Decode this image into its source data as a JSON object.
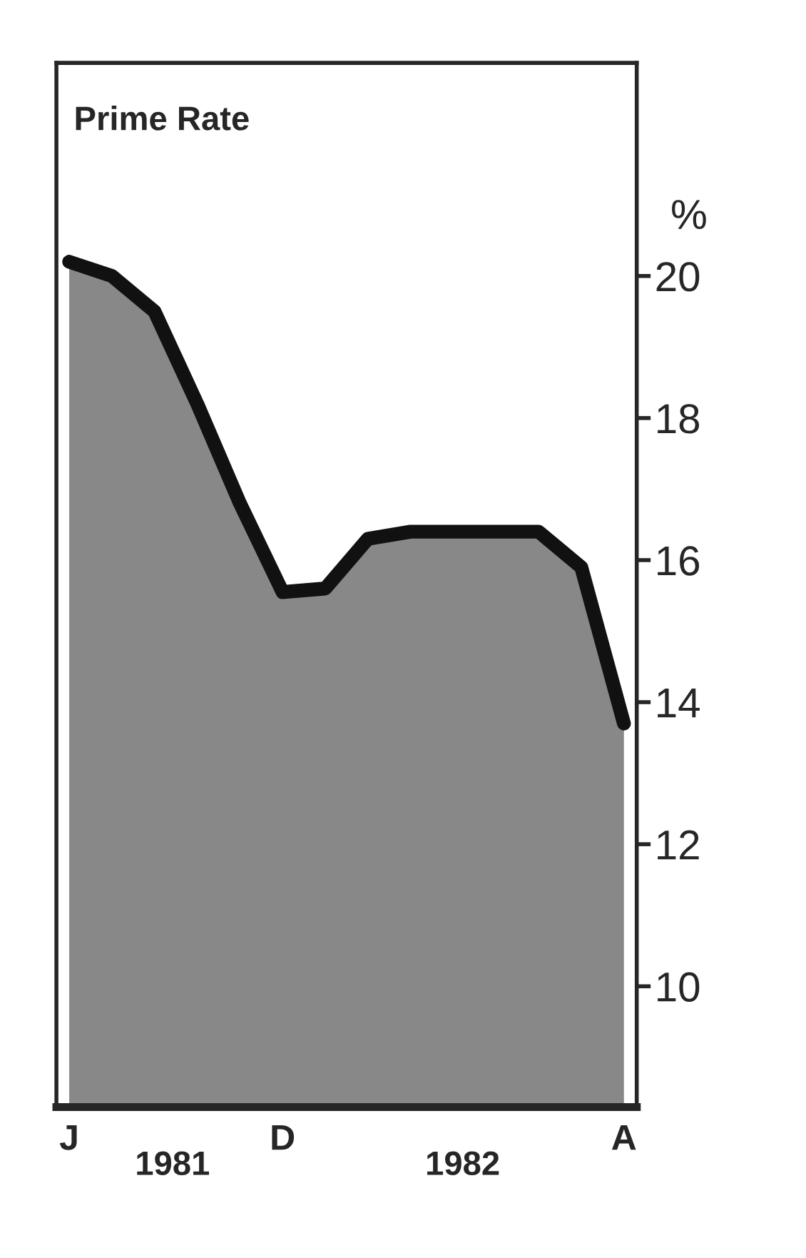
{
  "chart_data": {
    "type": "area",
    "title": "Prime Rate",
    "ylabel": "%",
    "categories": [
      "J",
      null,
      null,
      null,
      null,
      "D",
      null,
      null,
      null,
      null,
      null,
      null,
      null,
      "A"
    ],
    "series": [
      {
        "color": "#111111",
        "values": [
          20.2,
          20.0,
          19.5,
          18.2,
          16.8,
          15.55,
          15.6,
          16.3,
          16.4,
          16.4,
          16.4,
          16.4,
          15.9,
          13.7
        ]
      }
    ],
    "ylim": [
      8.3,
      23
    ],
    "yticks": [
      10,
      12,
      14,
      16,
      18,
      20
    ],
    "annotations": [
      "1981",
      "1982"
    ],
    "grid": false,
    "legend": false
  }
}
